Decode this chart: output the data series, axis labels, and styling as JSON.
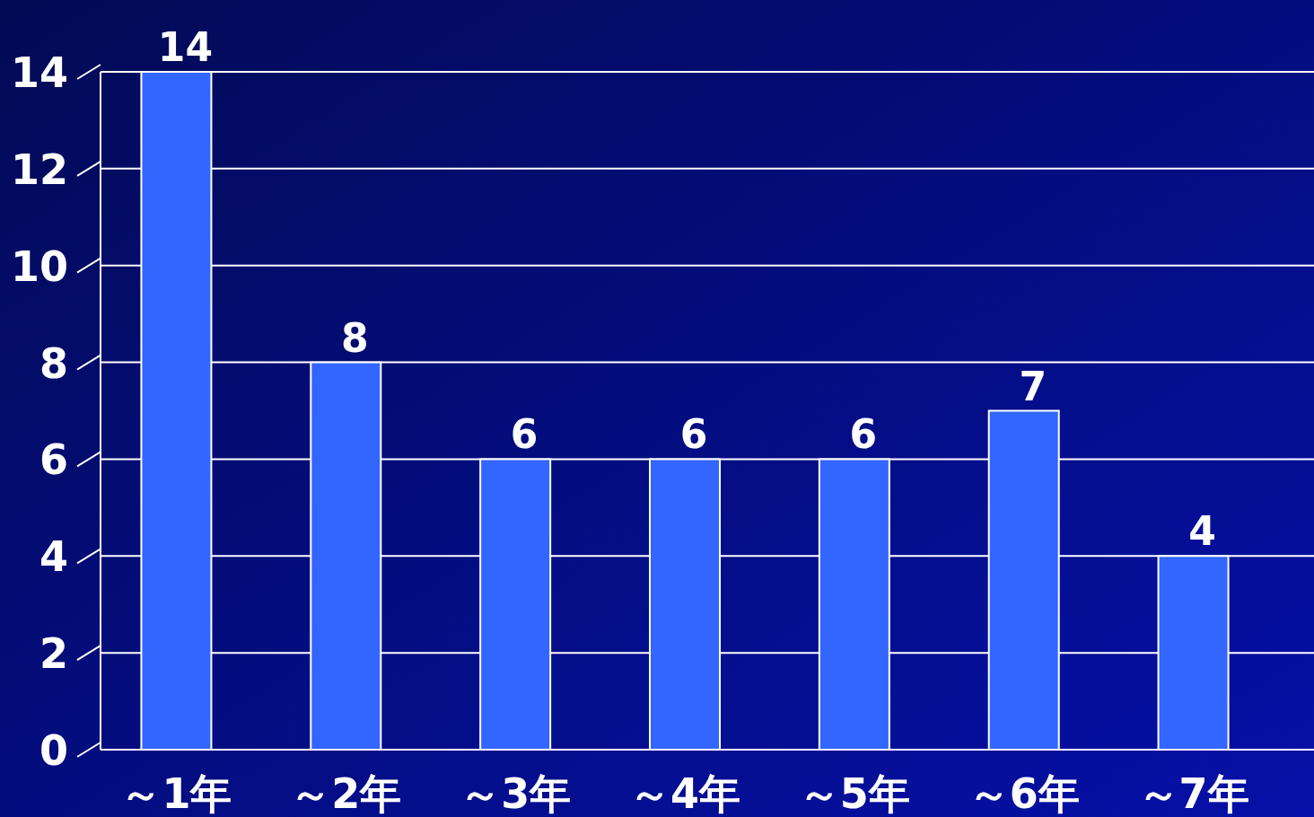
{
  "chart_data": {
    "type": "bar",
    "categories": [
      "～1年",
      "～2年",
      "～3年",
      "～4年",
      "～5年",
      "～6年",
      "～7年"
    ],
    "values": [
      14,
      8,
      6,
      6,
      6,
      7,
      4
    ],
    "color": "#3366ff",
    "ylim": [
      0,
      14
    ],
    "yticks": [
      0,
      2,
      4,
      6,
      8,
      10,
      12,
      14
    ],
    "grid": "y",
    "data_labels": true
  }
}
